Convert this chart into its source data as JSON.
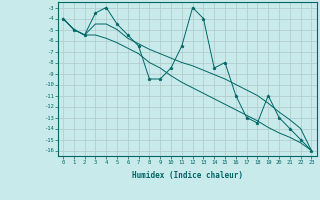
{
  "xlabel": "Humidex (Indice chaleur)",
  "ylabel": "",
  "background_color": "#c8eaea",
  "grid_color": "#b0c8c8",
  "line_color": "#006666",
  "x_values": [
    0,
    1,
    2,
    3,
    4,
    5,
    6,
    7,
    8,
    9,
    10,
    11,
    12,
    13,
    14,
    15,
    16,
    17,
    18,
    19,
    20,
    21,
    22,
    23
  ],
  "y_main": [
    -4,
    -5,
    -5.5,
    -3.5,
    -3,
    -4.5,
    -5.5,
    -6.5,
    -9.5,
    -9.5,
    -8.5,
    -6.5,
    -3,
    -4,
    -8.5,
    -8,
    -11,
    -13,
    -13.5,
    -11,
    -13,
    -14,
    -15,
    -16
  ],
  "y_upper": [
    -4,
    -5,
    -5.5,
    -4.5,
    -4.5,
    -5,
    -5.8,
    -6.3,
    -6.8,
    -7.2,
    -7.6,
    -8.0,
    -8.3,
    -8.7,
    -9.1,
    -9.5,
    -10.0,
    -10.5,
    -11.0,
    -11.7,
    -12.5,
    -13.2,
    -14.0,
    -16
  ],
  "y_lower": [
    -4,
    -5,
    -5.5,
    -5.5,
    -5.8,
    -6.2,
    -6.7,
    -7.2,
    -8.0,
    -8.5,
    -9.2,
    -9.8,
    -10.3,
    -10.8,
    -11.3,
    -11.8,
    -12.3,
    -12.8,
    -13.3,
    -13.9,
    -14.4,
    -14.8,
    -15.3,
    -16
  ],
  "ylim": [
    -16.5,
    -2.5
  ],
  "xlim": [
    -0.5,
    23.5
  ],
  "yticks": [
    -3,
    -4,
    -5,
    -6,
    -7,
    -8,
    -9,
    -10,
    -11,
    -12,
    -13,
    -14,
    -15,
    -16
  ]
}
